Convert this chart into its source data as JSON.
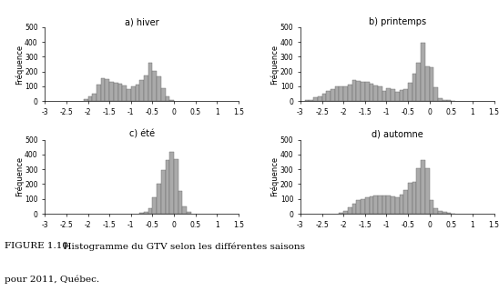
{
  "subplot_titles": [
    "a) hiver",
    "b) printemps",
    "c) été",
    "d) automne"
  ],
  "xlim": [
    -3,
    1.5
  ],
  "ylim": [
    0,
    500
  ],
  "yticks": [
    0,
    100,
    200,
    300,
    400,
    500
  ],
  "xticks": [
    -3,
    -2.5,
    -2,
    -1.5,
    -1,
    -0.5,
    0,
    0.5,
    1,
    1.5
  ],
  "xticklabels": [
    "-3",
    "-2.5",
    "-2",
    "-1.5",
    "-1",
    "-0.5",
    "0",
    "0.5",
    "1",
    "1.5"
  ],
  "bar_color": "#aaaaaa",
  "bar_edge_color": "#666666",
  "bar_width": 0.1,
  "ylabel": "Fréquence",
  "caption_prefix": "Figure 1.10.",
  "caption_rest": "  Histogramme du GTV selon les différentes saisons\npour 2011, Québec.",
  "hiver_centers": [
    -2.05,
    -1.95,
    -1.85,
    -1.75,
    -1.65,
    -1.55,
    -1.45,
    -1.35,
    -1.25,
    -1.15,
    -1.05,
    -0.95,
    -0.85,
    -0.75,
    -0.65,
    -0.55,
    -0.45,
    -0.35,
    -0.25,
    -0.15,
    -0.05
  ],
  "hiver_values": [
    15,
    30,
    50,
    110,
    155,
    150,
    130,
    125,
    115,
    105,
    80,
    100,
    110,
    140,
    175,
    260,
    205,
    170,
    90,
    30,
    5
  ],
  "printemps_centers": [
    -2.85,
    -2.75,
    -2.65,
    -2.55,
    -2.45,
    -2.35,
    -2.25,
    -2.15,
    -2.05,
    -1.95,
    -1.85,
    -1.75,
    -1.65,
    -1.55,
    -1.45,
    -1.35,
    -1.25,
    -1.15,
    -1.05,
    -0.95,
    -0.85,
    -0.75,
    -0.65,
    -0.55,
    -0.45,
    -0.35,
    -0.25,
    -0.15,
    -0.05,
    0.05,
    0.15,
    0.25,
    0.35,
    0.45,
    0.55
  ],
  "printemps_values": [
    5,
    10,
    25,
    35,
    50,
    70,
    80,
    100,
    100,
    100,
    110,
    140,
    135,
    130,
    130,
    120,
    105,
    100,
    70,
    90,
    80,
    60,
    75,
    80,
    125,
    185,
    260,
    395,
    235,
    230,
    95,
    20,
    10,
    5,
    2
  ],
  "ete_centers": [
    -0.75,
    -0.65,
    -0.55,
    -0.45,
    -0.35,
    -0.25,
    -0.15,
    -0.05,
    0.05,
    0.15,
    0.25,
    0.35
  ],
  "ete_values": [
    5,
    10,
    35,
    110,
    200,
    295,
    360,
    420,
    370,
    155,
    50,
    10
  ],
  "automne_centers": [
    -2.05,
    -1.95,
    -1.85,
    -1.75,
    -1.65,
    -1.55,
    -1.45,
    -1.35,
    -1.25,
    -1.15,
    -1.05,
    -0.95,
    -0.85,
    -0.75,
    -0.65,
    -0.55,
    -0.45,
    -0.35,
    -0.25,
    -0.15,
    -0.05,
    0.05,
    0.15,
    0.25,
    0.35,
    0.45,
    0.55
  ],
  "automne_values": [
    5,
    20,
    45,
    70,
    90,
    100,
    110,
    115,
    120,
    120,
    125,
    120,
    115,
    110,
    130,
    160,
    210,
    215,
    305,
    360,
    310,
    90,
    35,
    20,
    10,
    5,
    2
  ],
  "fig_width": 5.48,
  "fig_height": 3.31,
  "dpi": 100
}
